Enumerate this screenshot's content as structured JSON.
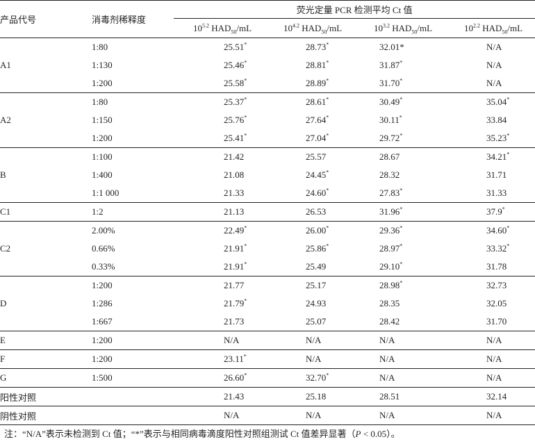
{
  "header": {
    "product": "产品代号",
    "dilution": "消毒剂稀释度",
    "group": "荧光定量 PCR 检测平均 Ct 值",
    "cols": [
      {
        "base": "10",
        "exp": "5.2",
        "unit": " HAD",
        "sub": "50",
        "tail": "/mL"
      },
      {
        "base": "10",
        "exp": "4.2",
        "unit": " HAD",
        "sub": "50",
        "tail": "/mL"
      },
      {
        "base": "10",
        "exp": "3.2",
        "unit": " HAD",
        "sub": "50",
        "tail": "/mL"
      },
      {
        "base": "10",
        "exp": "2.2",
        "unit": " HAD",
        "sub": "50",
        "tail": "/mL"
      }
    ]
  },
  "groups": [
    {
      "product": "A1",
      "rows": [
        {
          "dilution": "1:80",
          "values": [
            {
              "v": "25.51",
              "s": "*"
            },
            {
              "v": "28.73",
              "s": "*"
            },
            {
              "v": "32.01*",
              "s": ""
            },
            {
              "v": "N/A",
              "s": ""
            }
          ]
        },
        {
          "dilution": "1:130",
          "values": [
            {
              "v": "25.46",
              "s": "*"
            },
            {
              "v": "28.81",
              "s": "*"
            },
            {
              "v": "31.87",
              "s": "*"
            },
            {
              "v": "N/A",
              "s": ""
            }
          ]
        },
        {
          "dilution": "1:200",
          "values": [
            {
              "v": "25.58",
              "s": "*"
            },
            {
              "v": "28.89",
              "s": "*"
            },
            {
              "v": "31.70",
              "s": "*"
            },
            {
              "v": "N/A",
              "s": ""
            }
          ]
        }
      ]
    },
    {
      "product": "A2",
      "rows": [
        {
          "dilution": "1:80",
          "values": [
            {
              "v": "25.37",
              "s": "*"
            },
            {
              "v": "28.61",
              "s": "*"
            },
            {
              "v": "30.49",
              "s": "*"
            },
            {
              "v": "35.04",
              "s": "*"
            }
          ]
        },
        {
          "dilution": "1:150",
          "values": [
            {
              "v": "25.76",
              "s": "*"
            },
            {
              "v": "27.64",
              "s": "*"
            },
            {
              "v": "30.11",
              "s": "*"
            },
            {
              "v": "33.84",
              "s": ""
            }
          ]
        },
        {
          "dilution": "1:200",
          "values": [
            {
              "v": "25.41",
              "s": "*"
            },
            {
              "v": "27.04",
              "s": "*"
            },
            {
              "v": "29.72",
              "s": "*"
            },
            {
              "v": "35.23",
              "s": "*"
            }
          ]
        }
      ]
    },
    {
      "product": "B",
      "rows": [
        {
          "dilution": "1:100",
          "values": [
            {
              "v": "21.42",
              "s": ""
            },
            {
              "v": "25.57",
              "s": ""
            },
            {
              "v": "28.67",
              "s": ""
            },
            {
              "v": "34.21",
              "s": "*"
            }
          ]
        },
        {
          "dilution": "1:400",
          "values": [
            {
              "v": "21.08",
              "s": ""
            },
            {
              "v": "24.45",
              "s": "*"
            },
            {
              "v": "28.32",
              "s": ""
            },
            {
              "v": "31.71",
              "s": ""
            }
          ]
        },
        {
          "dilution": "1:1 000",
          "values": [
            {
              "v": "21.33",
              "s": ""
            },
            {
              "v": "24.60",
              "s": "*"
            },
            {
              "v": "27.83",
              "s": "*"
            },
            {
              "v": "31.33",
              "s": ""
            }
          ]
        }
      ]
    },
    {
      "product": "C1",
      "rows": [
        {
          "dilution": "1:2",
          "values": [
            {
              "v": "21.13",
              "s": ""
            },
            {
              "v": "26.53",
              "s": ""
            },
            {
              "v": "31.96",
              "s": "*"
            },
            {
              "v": "37.9",
              "s": "*"
            }
          ]
        }
      ]
    },
    {
      "product": "C2",
      "rows": [
        {
          "dilution": "2.00%",
          "values": [
            {
              "v": "22.49",
              "s": "*"
            },
            {
              "v": "26.00",
              "s": "*"
            },
            {
              "v": "29.36",
              "s": "*"
            },
            {
              "v": "34.60",
              "s": "*"
            }
          ]
        },
        {
          "dilution": "0.66%",
          "values": [
            {
              "v": "21.91",
              "s": "*"
            },
            {
              "v": "25.86",
              "s": "*"
            },
            {
              "v": "28.97",
              "s": "*"
            },
            {
              "v": "33.32",
              "s": "*"
            }
          ]
        },
        {
          "dilution": "0.33%",
          "values": [
            {
              "v": "21.91",
              "s": "*"
            },
            {
              "v": "25.49",
              "s": ""
            },
            {
              "v": "29.10",
              "s": "*"
            },
            {
              "v": "31.78",
              "s": ""
            }
          ]
        }
      ]
    },
    {
      "product": "D",
      "rows": [
        {
          "dilution": "1:200",
          "values": [
            {
              "v": "21.77",
              "s": ""
            },
            {
              "v": "25.17",
              "s": ""
            },
            {
              "v": "28.98",
              "s": "*"
            },
            {
              "v": "32.73",
              "s": ""
            }
          ]
        },
        {
          "dilution": "1:286",
          "values": [
            {
              "v": "21.79",
              "s": "*"
            },
            {
              "v": "24.93",
              "s": ""
            },
            {
              "v": "28.35",
              "s": ""
            },
            {
              "v": "32.05",
              "s": ""
            }
          ]
        },
        {
          "dilution": "1:667",
          "values": [
            {
              "v": "21.73",
              "s": ""
            },
            {
              "v": "25.07",
              "s": ""
            },
            {
              "v": "28.42",
              "s": ""
            },
            {
              "v": "31.70",
              "s": ""
            }
          ]
        }
      ]
    },
    {
      "product": "E",
      "rows": [
        {
          "dilution": "1:200",
          "values": [
            {
              "v": "N/A",
              "s": ""
            },
            {
              "v": "N/A",
              "s": ""
            },
            {
              "v": "N/A",
              "s": ""
            },
            {
              "v": "N/A",
              "s": ""
            }
          ]
        }
      ]
    },
    {
      "product": "F",
      "rows": [
        {
          "dilution": "1:200",
          "values": [
            {
              "v": "23.11",
              "s": "*"
            },
            {
              "v": "N/A",
              "s": ""
            },
            {
              "v": "N/A",
              "s": ""
            },
            {
              "v": "N/A",
              "s": ""
            }
          ]
        }
      ]
    },
    {
      "product": "G",
      "rows": [
        {
          "dilution": "1:500",
          "values": [
            {
              "v": "26.60",
              "s": "*"
            },
            {
              "v": "32.70",
              "s": "*"
            },
            {
              "v": "N/A",
              "s": ""
            },
            {
              "v": "N/A",
              "s": ""
            }
          ]
        }
      ]
    },
    {
      "product": "阳性对照",
      "rows": [
        {
          "dilution": "",
          "values": [
            {
              "v": "21.43",
              "s": ""
            },
            {
              "v": "25.18",
              "s": ""
            },
            {
              "v": "28.51",
              "s": ""
            },
            {
              "v": "32.14",
              "s": ""
            }
          ]
        }
      ]
    },
    {
      "product": "阴性对照",
      "rows": [
        {
          "dilution": "",
          "values": [
            {
              "v": "N/A",
              "s": ""
            },
            {
              "v": "N/A",
              "s": ""
            },
            {
              "v": "N/A",
              "s": ""
            },
            {
              "v": "N/A",
              "s": ""
            }
          ]
        }
      ]
    }
  ],
  "note": {
    "prefix": "注：“N/A”表示未检测到 Ct 值；“*”表示与相同病毒滴度阳性对照组测试 Ct 值差异显著（",
    "p": "P",
    "suffix": " < 0.05）。"
  }
}
